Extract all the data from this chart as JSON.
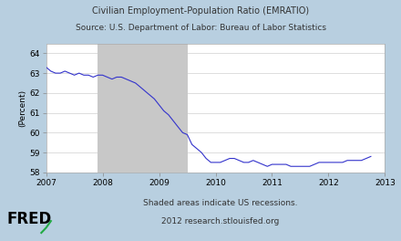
{
  "title_line1": "Civilian Employment-Population Ratio (EMRATIO)",
  "title_line2": "Source: U.S. Department of Labor: Bureau of Labor Statistics",
  "ylabel": "(Percent)",
  "footnote_line1": "Shaded areas indicate US recessions.",
  "footnote_line2": "2012 research.stlouisfed.org",
  "fred_label": "FRED",
  "background_outer": "#b8cfe0",
  "background_plot": "#ffffff",
  "recession_color": "#c8c8c8",
  "line_color": "#3333cc",
  "recession_start": 2007.917,
  "recession_end": 2009.5,
  "xlim": [
    2007.0,
    2013.0
  ],
  "ylim": [
    58.0,
    64.5
  ],
  "yticks": [
    58,
    59,
    60,
    61,
    62,
    63,
    64
  ],
  "xticks": [
    2007,
    2008,
    2009,
    2010,
    2011,
    2012,
    2013
  ],
  "data": [
    [
      2007.0,
      63.3
    ],
    [
      2007.083,
      63.1
    ],
    [
      2007.167,
      63.0
    ],
    [
      2007.25,
      63.0
    ],
    [
      2007.333,
      63.1
    ],
    [
      2007.417,
      63.0
    ],
    [
      2007.5,
      62.9
    ],
    [
      2007.583,
      63.0
    ],
    [
      2007.667,
      62.9
    ],
    [
      2007.75,
      62.9
    ],
    [
      2007.833,
      62.8
    ],
    [
      2007.917,
      62.9
    ],
    [
      2008.0,
      62.9
    ],
    [
      2008.083,
      62.8
    ],
    [
      2008.167,
      62.7
    ],
    [
      2008.25,
      62.8
    ],
    [
      2008.333,
      62.8
    ],
    [
      2008.417,
      62.7
    ],
    [
      2008.5,
      62.6
    ],
    [
      2008.583,
      62.5
    ],
    [
      2008.667,
      62.3
    ],
    [
      2008.75,
      62.1
    ],
    [
      2008.833,
      61.9
    ],
    [
      2008.917,
      61.7
    ],
    [
      2009.0,
      61.4
    ],
    [
      2009.083,
      61.1
    ],
    [
      2009.167,
      60.9
    ],
    [
      2009.25,
      60.6
    ],
    [
      2009.333,
      60.3
    ],
    [
      2009.417,
      60.0
    ],
    [
      2009.5,
      59.9
    ],
    [
      2009.583,
      59.4
    ],
    [
      2009.667,
      59.2
    ],
    [
      2009.75,
      59.0
    ],
    [
      2009.833,
      58.7
    ],
    [
      2009.917,
      58.5
    ],
    [
      2010.0,
      58.5
    ],
    [
      2010.083,
      58.5
    ],
    [
      2010.167,
      58.6
    ],
    [
      2010.25,
      58.7
    ],
    [
      2010.333,
      58.7
    ],
    [
      2010.417,
      58.6
    ],
    [
      2010.5,
      58.5
    ],
    [
      2010.583,
      58.5
    ],
    [
      2010.667,
      58.6
    ],
    [
      2010.75,
      58.5
    ],
    [
      2010.833,
      58.4
    ],
    [
      2010.917,
      58.3
    ],
    [
      2011.0,
      58.4
    ],
    [
      2011.083,
      58.4
    ],
    [
      2011.167,
      58.4
    ],
    [
      2011.25,
      58.4
    ],
    [
      2011.333,
      58.3
    ],
    [
      2011.417,
      58.3
    ],
    [
      2011.5,
      58.3
    ],
    [
      2011.583,
      58.3
    ],
    [
      2011.667,
      58.3
    ],
    [
      2011.75,
      58.4
    ],
    [
      2011.833,
      58.5
    ],
    [
      2011.917,
      58.5
    ],
    [
      2012.0,
      58.5
    ],
    [
      2012.083,
      58.5
    ],
    [
      2012.167,
      58.5
    ],
    [
      2012.25,
      58.5
    ],
    [
      2012.333,
      58.6
    ],
    [
      2012.417,
      58.6
    ],
    [
      2012.5,
      58.6
    ],
    [
      2012.583,
      58.6
    ],
    [
      2012.667,
      58.7
    ],
    [
      2012.75,
      58.8
    ]
  ]
}
